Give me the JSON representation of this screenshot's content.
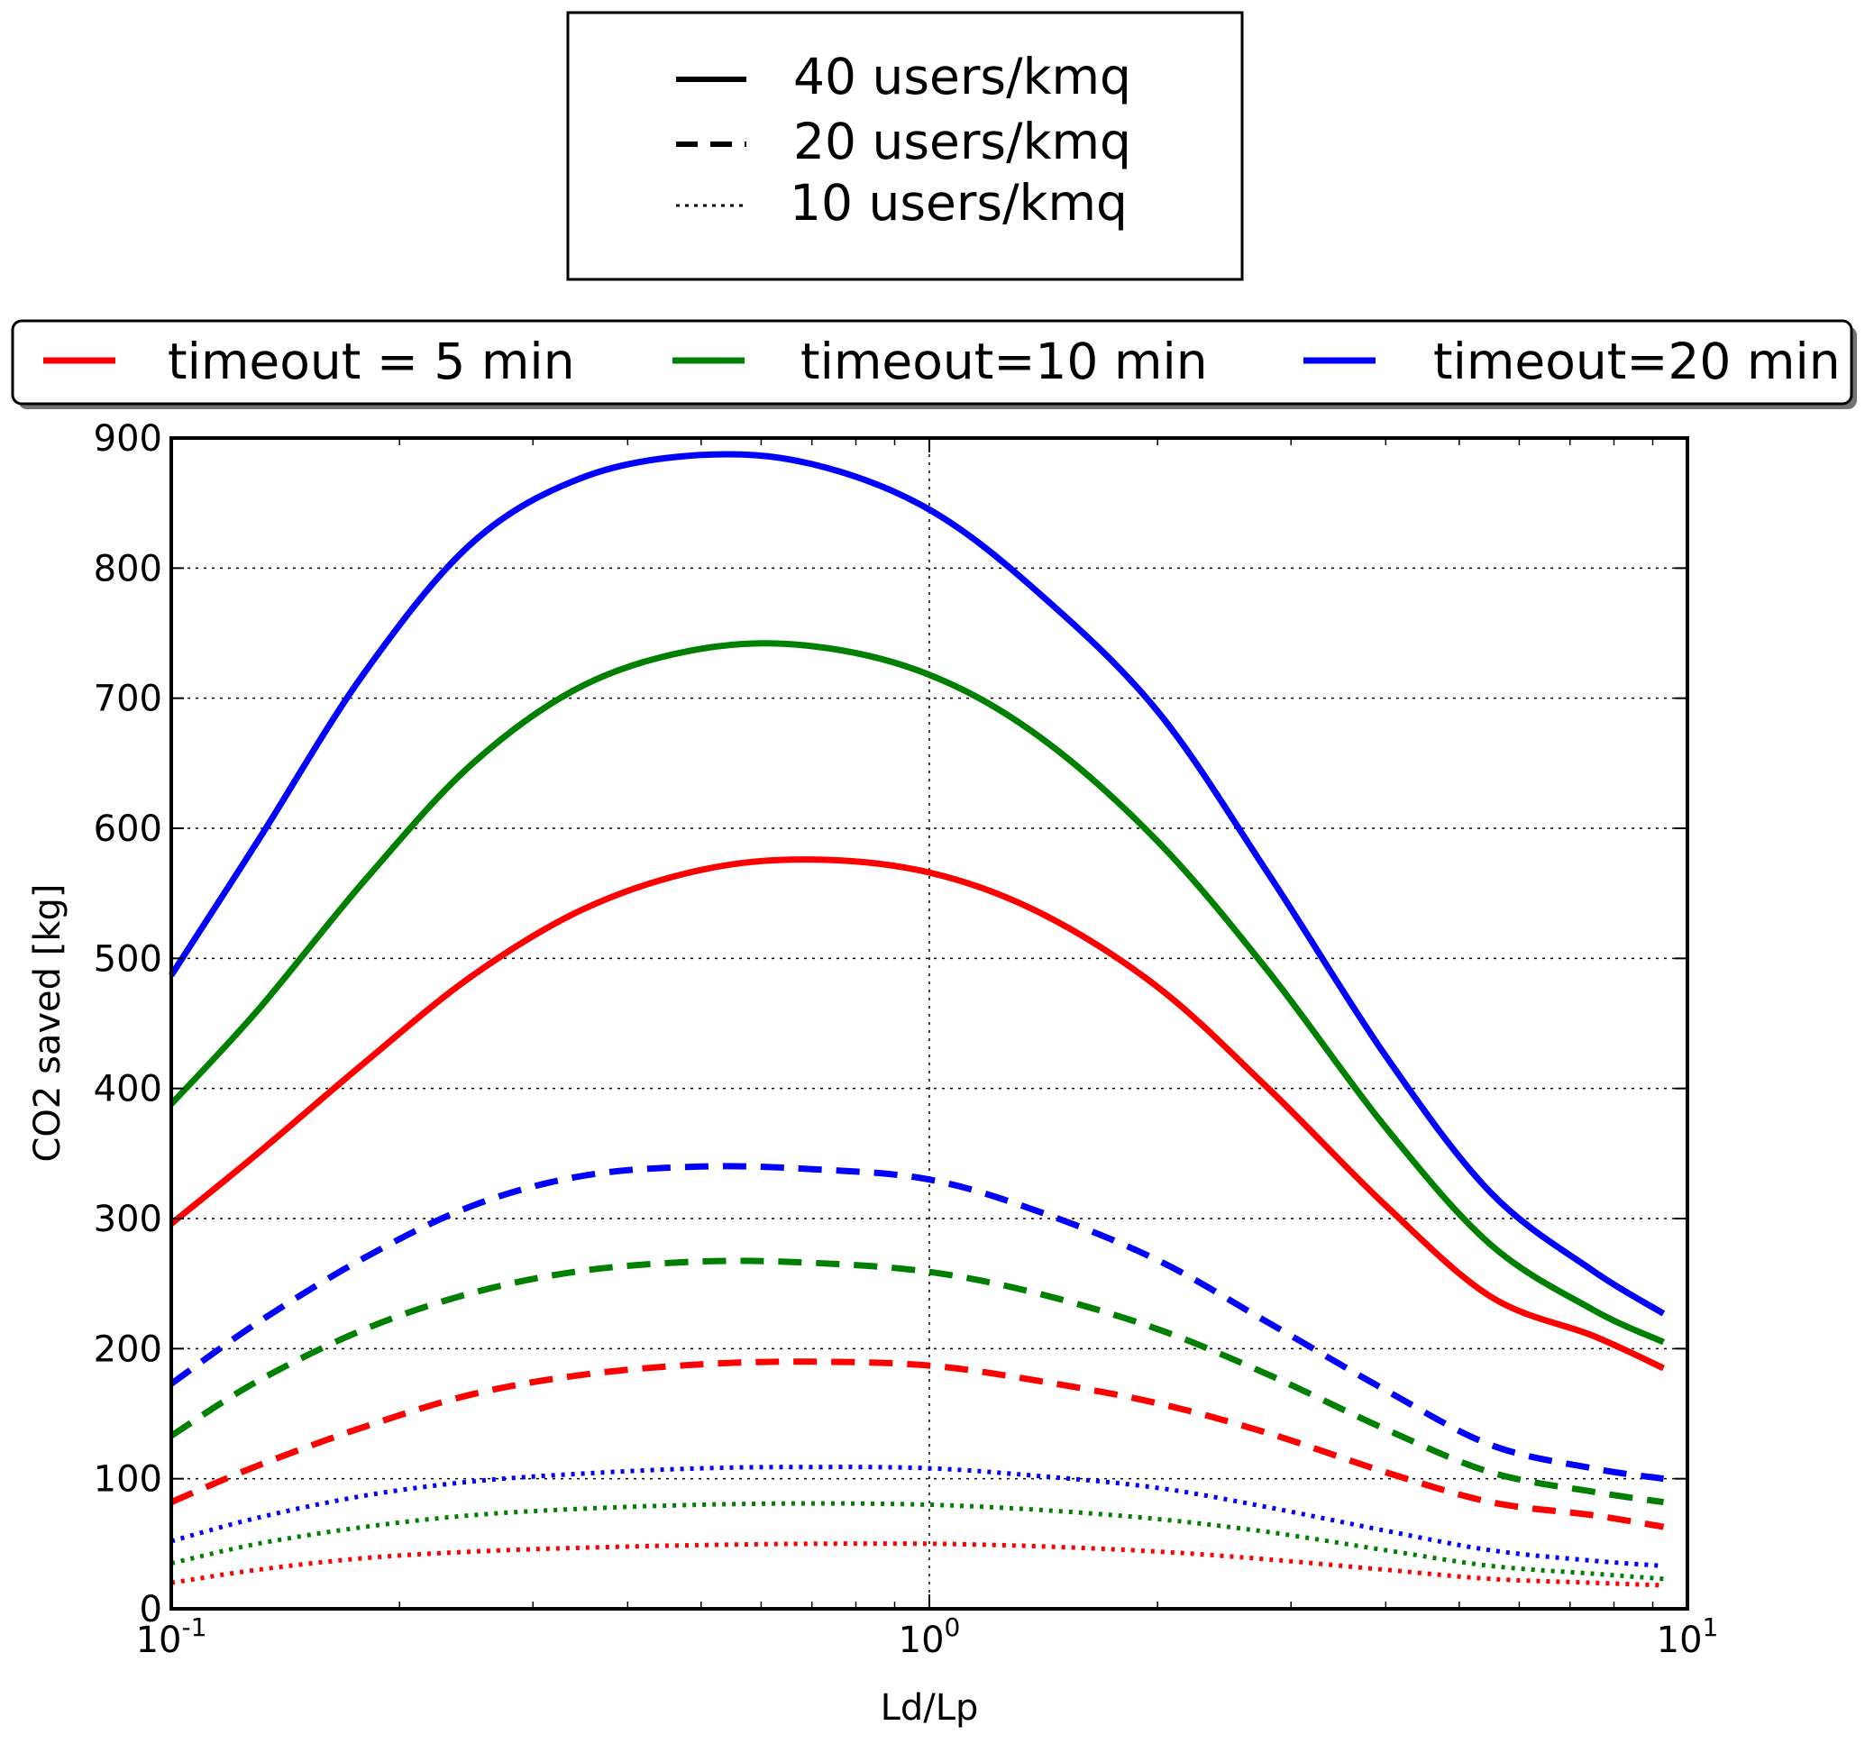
{
  "chart_data": {
    "type": "line",
    "xlabel": "Ld/Lp",
    "ylabel": "CO2 saved [kg]",
    "xscale": "log",
    "xlim": [
      0.1,
      10
    ],
    "ylim": [
      0,
      900
    ],
    "grid": true,
    "x_ticks": [
      {
        "base": "10",
        "exp": "-1",
        "value": 0.1
      },
      {
        "base": "10",
        "exp": "0",
        "value": 1
      },
      {
        "base": "10",
        "exp": "1",
        "value": 10
      }
    ],
    "y_ticks": [
      "0",
      "100",
      "200",
      "300",
      "400",
      "500",
      "600",
      "700",
      "800",
      "900"
    ],
    "x": [
      0.1,
      0.13,
      0.18,
      0.25,
      0.35,
      0.5,
      0.7,
      1.0,
      1.4,
      2.0,
      2.8,
      4.0,
      5.5,
      7.5,
      9.3
    ],
    "series": [
      {
        "name": "timeout = 5 min, 40 users/kmq",
        "color": "#ff0000",
        "dash": "solid",
        "values": [
          296,
          350,
          420,
          487,
          538,
          568,
          576,
          566,
          535,
          478,
          400,
          310,
          240,
          210,
          185
        ]
      },
      {
        "name": "timeout=10 min, 40 users/kmq",
        "color": "#008000",
        "dash": "solid",
        "values": [
          388,
          460,
          560,
          650,
          710,
          738,
          740,
          718,
          670,
          590,
          490,
          370,
          280,
          230,
          205
        ]
      },
      {
        "name": "timeout=20 min, 40 users/kmq",
        "color": "#0000ff",
        "dash": "solid",
        "values": [
          487,
          590,
          720,
          820,
          870,
          887,
          880,
          845,
          780,
          690,
          565,
          425,
          320,
          260,
          227
        ]
      },
      {
        "name": "timeout = 5 min, 20 users/kmq",
        "color": "#ff0000",
        "dash": "dashed",
        "values": [
          82,
          110,
          140,
          165,
          180,
          188,
          190,
          187,
          175,
          158,
          135,
          105,
          82,
          72,
          63
        ]
      },
      {
        "name": "timeout=10 min, 20 users/kmq",
        "color": "#008000",
        "dash": "dashed",
        "values": [
          133,
          175,
          215,
          243,
          260,
          267,
          266,
          259,
          242,
          215,
          180,
          138,
          105,
          90,
          82
        ]
      },
      {
        "name": "timeout=20 min, 20 users/kmq",
        "color": "#0000ff",
        "dash": "dashed",
        "values": [
          173,
          220,
          270,
          310,
          333,
          340,
          338,
          330,
          305,
          268,
          220,
          168,
          126,
          108,
          100
        ]
      },
      {
        "name": "timeout = 5 min, 10 users/kmq",
        "color": "#ff0000",
        "dash": "dotted",
        "values": [
          20,
          30,
          39,
          44,
          47,
          49,
          50,
          50,
          48,
          44,
          38,
          30,
          23,
          20,
          18
        ]
      },
      {
        "name": "timeout=10 min, 10 users/kmq",
        "color": "#008000",
        "dash": "dotted",
        "values": [
          35,
          50,
          63,
          72,
          77,
          80,
          81,
          80,
          76,
          69,
          59,
          45,
          33,
          27,
          23
        ]
      },
      {
        "name": "timeout=20 min, 10 users/kmq",
        "color": "#0000ff",
        "dash": "dotted",
        "values": [
          52,
          70,
          87,
          98,
          104,
          108,
          109,
          108,
          102,
          93,
          78,
          60,
          45,
          37,
          33
        ]
      }
    ]
  },
  "legend_density": {
    "entries": [
      {
        "label": "40 users/kmq",
        "dash": "solid"
      },
      {
        "label": "20 users/kmq",
        "dash": "dashed"
      },
      {
        "label": "10 users/kmq",
        "dash": "dotted"
      }
    ]
  },
  "legend_timeout": {
    "entries": [
      {
        "label": "timeout = 5 min",
        "color": "#ff0000"
      },
      {
        "label": "timeout=10 min",
        "color": "#008000"
      },
      {
        "label": "timeout=20 min",
        "color": "#0000ff"
      }
    ]
  }
}
